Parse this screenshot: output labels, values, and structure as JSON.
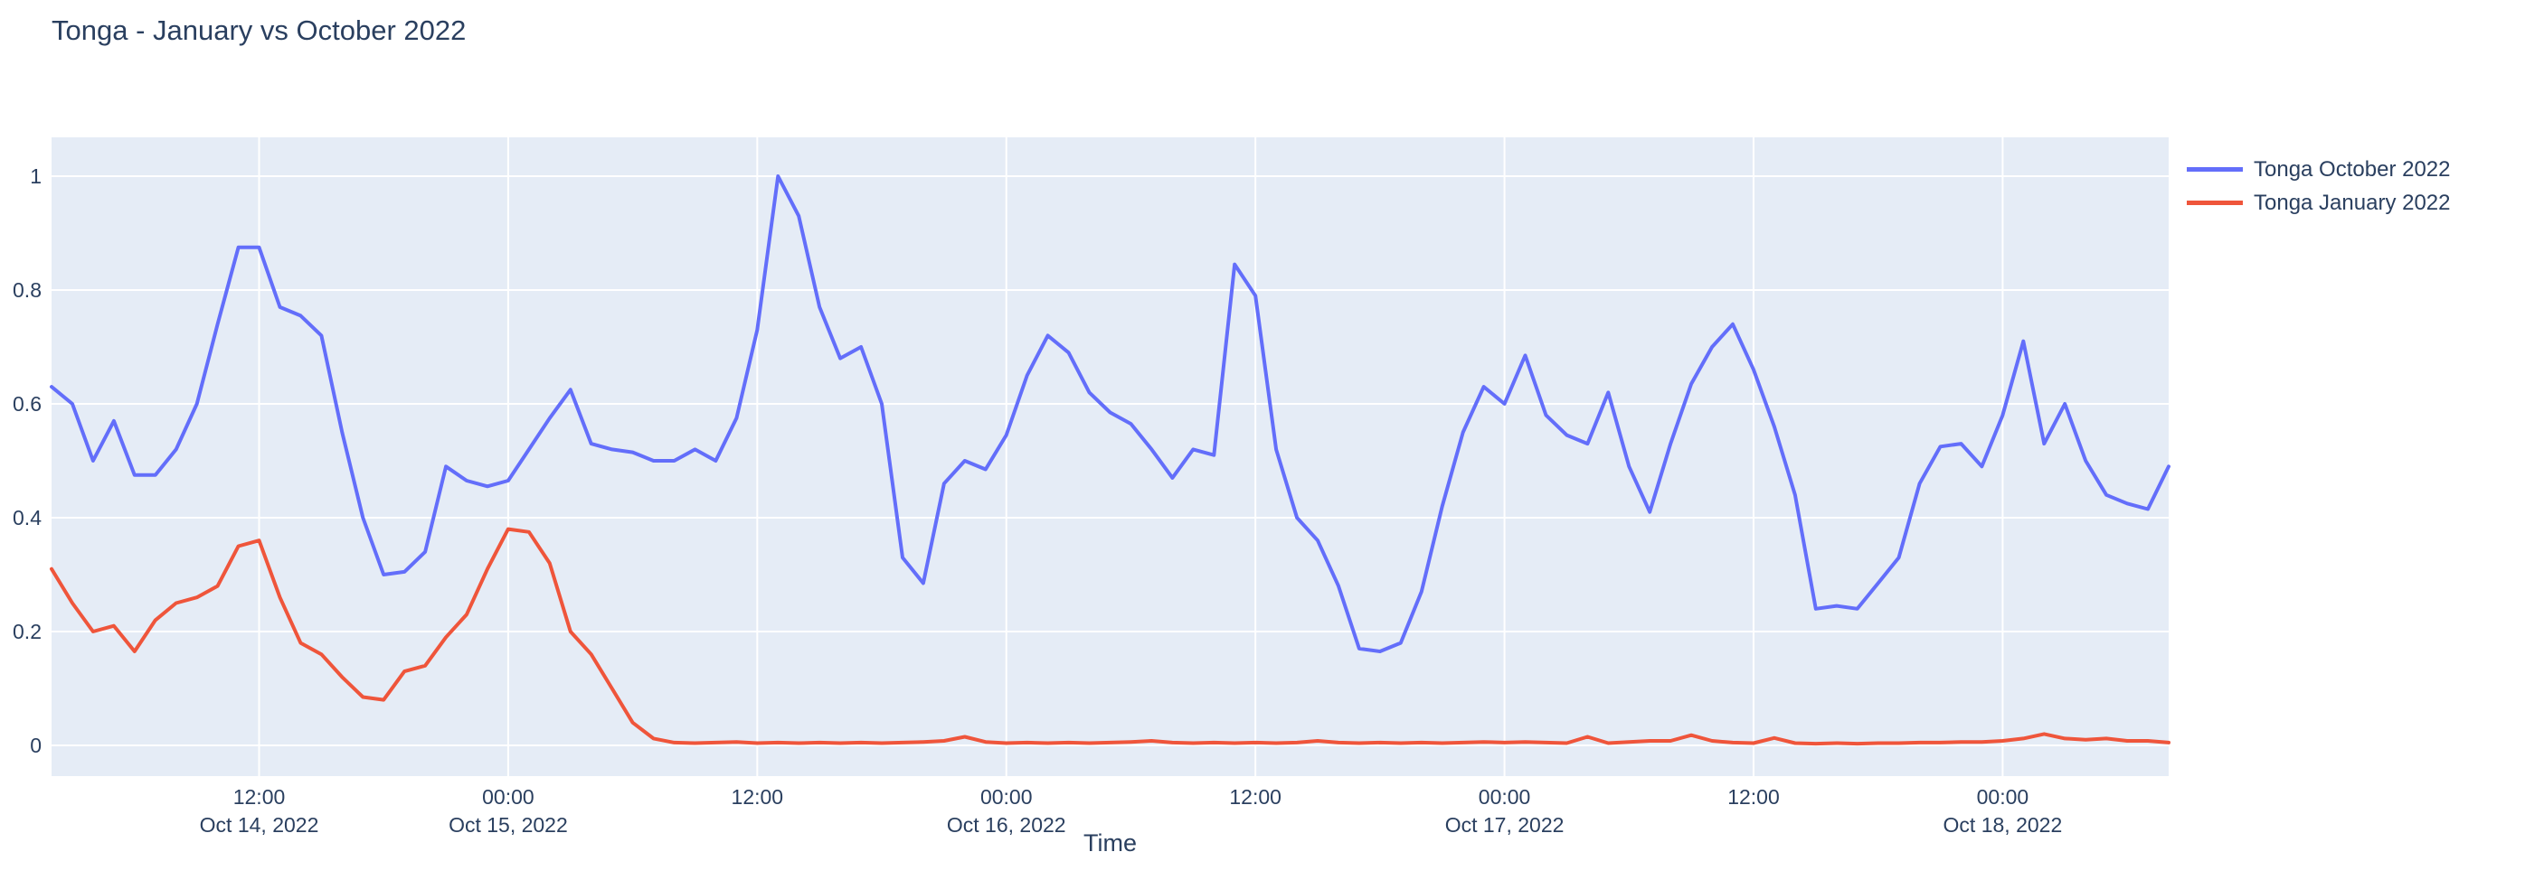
{
  "chart_data": {
    "type": "line",
    "title": "Tonga - January vs October 2022",
    "xlabel": "Time",
    "ylabel": "",
    "grid": true,
    "legend_position": "top-right",
    "plot_background": "#E5ECF6",
    "gridline_color": "#FFFFFF",
    "text_color": "#2a3f5f",
    "ylim": [
      -0.05,
      1.07
    ],
    "yticks": [
      {
        "value": 0,
        "label": "0"
      },
      {
        "value": 0.2,
        "label": "0.2"
      },
      {
        "value": 0.4,
        "label": "0.4"
      },
      {
        "value": 0.6,
        "label": "0.6"
      },
      {
        "value": 0.8,
        "label": "0.8"
      },
      {
        "value": 1,
        "label": "1"
      }
    ],
    "x_start": "2022-10-14 02:00",
    "x_step_hours": 1,
    "x_ticks": [
      {
        "time": "12:00",
        "date": "Oct 14, 2022",
        "hour": 10
      },
      {
        "time": "00:00",
        "date": "Oct 15, 2022",
        "hour": 22
      },
      {
        "time": "12:00",
        "date": "",
        "hour": 34
      },
      {
        "time": "00:00",
        "date": "Oct 16, 2022",
        "hour": 46
      },
      {
        "time": "12:00",
        "date": "",
        "hour": 58
      },
      {
        "time": "00:00",
        "date": "Oct 17, 2022",
        "hour": 70
      },
      {
        "time": "12:00",
        "date": "",
        "hour": 82
      },
      {
        "time": "00:00",
        "date": "Oct 18, 2022",
        "hour": 94
      }
    ],
    "series": [
      {
        "name": "Tonga October 2022",
        "color": "#636EFA",
        "values": [
          0.63,
          0.6,
          0.5,
          0.57,
          0.475,
          0.475,
          0.52,
          0.6,
          0.74,
          0.875,
          0.875,
          0.77,
          0.755,
          0.72,
          0.55,
          0.4,
          0.3,
          0.305,
          0.34,
          0.49,
          0.465,
          0.455,
          0.465,
          0.52,
          0.575,
          0.625,
          0.53,
          0.52,
          0.515,
          0.5,
          0.5,
          0.52,
          0.5,
          0.575,
          0.73,
          1.0,
          0.93,
          0.77,
          0.68,
          0.7,
          0.6,
          0.33,
          0.285,
          0.46,
          0.5,
          0.485,
          0.545,
          0.65,
          0.72,
          0.69,
          0.62,
          0.585,
          0.565,
          0.52,
          0.47,
          0.52,
          0.51,
          0.845,
          0.79,
          0.52,
          0.4,
          0.36,
          0.28,
          0.17,
          0.165,
          0.18,
          0.27,
          0.42,
          0.55,
          0.63,
          0.6,
          0.685,
          0.58,
          0.545,
          0.53,
          0.62,
          0.49,
          0.41,
          0.53,
          0.635,
          0.7,
          0.74,
          0.66,
          0.56,
          0.44,
          0.24,
          0.245,
          0.24,
          0.285,
          0.33,
          0.46,
          0.525,
          0.53,
          0.49,
          0.58,
          0.71,
          0.53,
          0.6,
          0.5,
          0.44,
          0.425,
          0.415,
          0.49
        ]
      },
      {
        "name": "Tonga January 2022",
        "color": "#EF553B",
        "values": [
          0.31,
          0.25,
          0.2,
          0.21,
          0.165,
          0.22,
          0.25,
          0.26,
          0.28,
          0.35,
          0.36,
          0.26,
          0.18,
          0.16,
          0.12,
          0.085,
          0.08,
          0.13,
          0.14,
          0.19,
          0.23,
          0.31,
          0.38,
          0.375,
          0.32,
          0.2,
          0.16,
          0.1,
          0.04,
          0.012,
          0.005,
          0.004,
          0.005,
          0.006,
          0.004,
          0.005,
          0.004,
          0.005,
          0.004,
          0.005,
          0.004,
          0.005,
          0.006,
          0.008,
          0.015,
          0.006,
          0.004,
          0.005,
          0.004,
          0.005,
          0.004,
          0.005,
          0.006,
          0.008,
          0.005,
          0.004,
          0.005,
          0.004,
          0.005,
          0.004,
          0.005,
          0.008,
          0.005,
          0.004,
          0.005,
          0.004,
          0.005,
          0.004,
          0.005,
          0.006,
          0.005,
          0.006,
          0.005,
          0.004,
          0.015,
          0.004,
          0.006,
          0.008,
          0.008,
          0.018,
          0.008,
          0.005,
          0.004,
          0.013,
          0.004,
          0.003,
          0.004,
          0.003,
          0.004,
          0.004,
          0.005,
          0.005,
          0.006,
          0.006,
          0.008,
          0.012,
          0.02,
          0.012,
          0.01,
          0.012,
          0.008,
          0.008,
          0.005
        ]
      }
    ]
  }
}
